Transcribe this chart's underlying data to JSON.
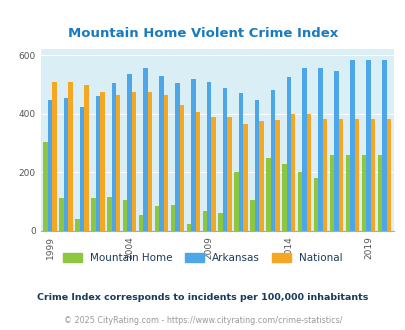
{
  "title": "Mountain Home Violent Crime Index",
  "title_color": "#1a7abf",
  "years": [
    1999,
    2000,
    2001,
    2002,
    2003,
    2004,
    2005,
    2006,
    2007,
    2008,
    2009,
    2010,
    2011,
    2012,
    2013,
    2014,
    2015,
    2016,
    2017,
    2018,
    2019,
    2020
  ],
  "mountain_home": [
    305,
    112,
    40,
    112,
    115,
    107,
    55,
    85,
    90,
    25,
    67,
    60,
    200,
    107,
    248,
    228,
    203,
    180,
    260,
    260,
    260,
    260
  ],
  "arkansas": [
    447,
    455,
    425,
    460,
    505,
    535,
    557,
    530,
    505,
    520,
    510,
    490,
    470,
    447,
    480,
    527,
    557,
    557,
    548,
    585,
    585,
    585
  ],
  "national": [
    510,
    510,
    500,
    475,
    465,
    475,
    475,
    465,
    430,
    408,
    390,
    390,
    365,
    375,
    380,
    400,
    398,
    383,
    383,
    383,
    383,
    383
  ],
  "mountain_home_color": "#8dc63f",
  "arkansas_color": "#4da6e8",
  "national_color": "#f5a623",
  "bg_color": "#daeef5",
  "ylim": [
    0,
    620
  ],
  "yticks": [
    0,
    200,
    400,
    600
  ],
  "xtick_years": [
    1999,
    2004,
    2009,
    2014,
    2019
  ],
  "footnote1": "Crime Index corresponds to incidents per 100,000 inhabitants",
  "footnote2": "© 2025 CityRating.com - https://www.cityrating.com/crime-statistics/",
  "footnote1_color": "#1a3a5c",
  "footnote2_color": "#999999",
  "legend_labels": [
    "Mountain Home",
    "Arkansas",
    "National"
  ]
}
